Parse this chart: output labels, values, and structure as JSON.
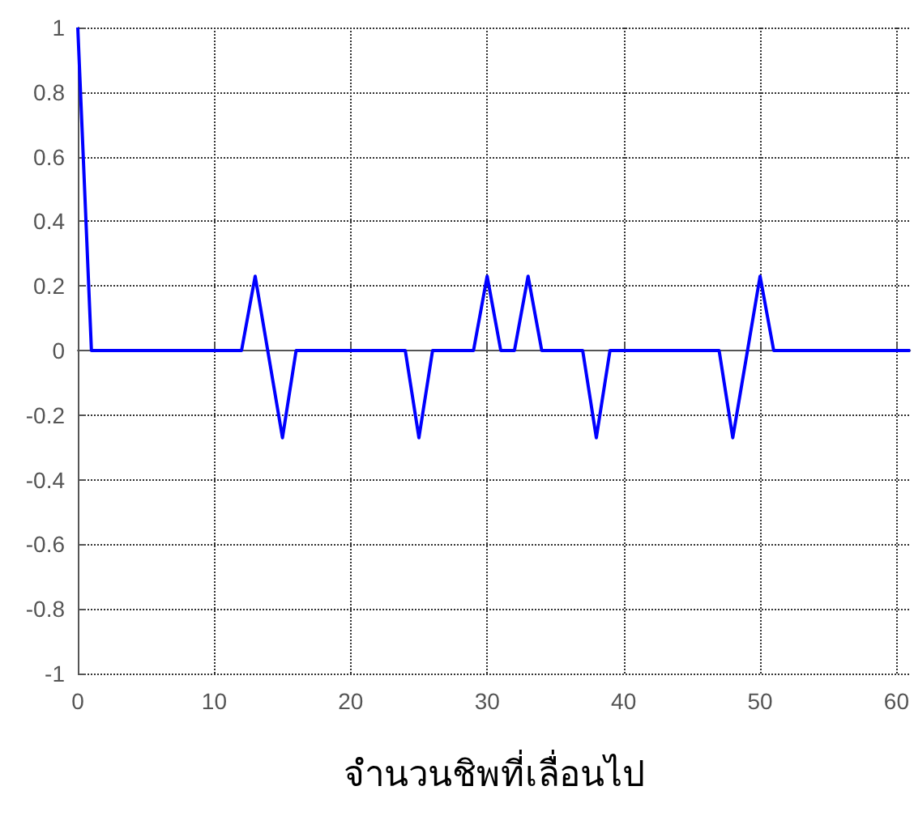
{
  "chart_data": {
    "type": "line",
    "xlabel": "จำนวนชิพที่เลื่อนไป",
    "series": [
      {
        "color": "#0000ff",
        "x": [
          0,
          1,
          12,
          13,
          15,
          16,
          24,
          25,
          26,
          29,
          30,
          31,
          32,
          33,
          34,
          37,
          38,
          39,
          47,
          48,
          50,
          51,
          61
        ],
        "values": [
          1,
          0,
          0,
          0.23,
          -0.27,
          0,
          0,
          -0.27,
          0,
          0,
          0.23,
          0,
          0,
          0.23,
          0,
          0,
          -0.27,
          0,
          0,
          -0.27,
          0.23,
          0,
          0
        ]
      }
    ],
    "xlim": [
      0,
      61
    ],
    "xticks": [
      0,
      10,
      20,
      30,
      40,
      50,
      60
    ],
    "ylim": [
      -1,
      1
    ],
    "yticks": [
      -1,
      -0.8,
      -0.6,
      -0.4,
      -0.2,
      0,
      0.2,
      0.4,
      0.6,
      0.8,
      1
    ],
    "grid": true,
    "marker": "none",
    "line_style": "solid"
  }
}
